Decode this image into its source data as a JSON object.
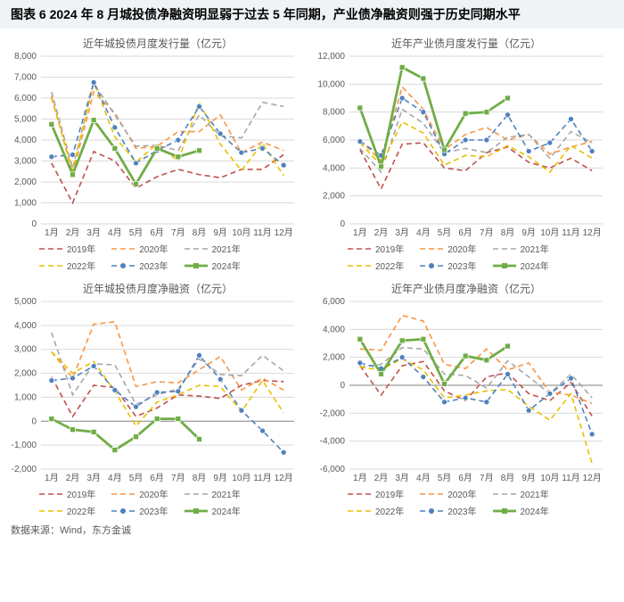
{
  "header": "图表 6   2024 年 8 月城投债净融资明显弱于过去 5 年同期，产业债净融资则强于历史同期水平",
  "footer": "数据来源：Wind，东方金诚",
  "categories": [
    "1月",
    "2月",
    "3月",
    "4月",
    "5月",
    "6月",
    "7月",
    "8月",
    "9月",
    "10月",
    "11月",
    "12月"
  ],
  "series_meta": [
    {
      "key": "y2019",
      "name": "2019年",
      "color": "#c0504d",
      "dash": "6 4",
      "marker": "none",
      "width": 1.6
    },
    {
      "key": "y2020",
      "name": "2020年",
      "color": "#f79646",
      "dash": "6 4",
      "marker": "none",
      "width": 1.6
    },
    {
      "key": "y2021",
      "name": "2021年",
      "color": "#a6a6a6",
      "dash": "6 4",
      "marker": "none",
      "width": 1.6
    },
    {
      "key": "y2022",
      "name": "2022年",
      "color": "#e8c000",
      "dash": "6 4",
      "marker": "none",
      "width": 1.6
    },
    {
      "key": "y2023",
      "name": "2023年",
      "color": "#4f81bd",
      "dash": "6 4",
      "marker": "circle",
      "width": 1.6
    },
    {
      "key": "y2024",
      "name": "2024年",
      "color": "#70ad47",
      "dash": "none",
      "marker": "square",
      "width": 2.8
    }
  ],
  "chart_style": {
    "plot_bg": "#ffffff",
    "grid_color": "#d9d9d9",
    "axis_font": 10,
    "title_font": 12,
    "title_color": "#595959",
    "marker_radius": 3
  },
  "panels": [
    {
      "id": "tl",
      "title": "近年城投债月度发行量（亿元）",
      "ymin": 0,
      "ymax": 8000,
      "ystep": 1000,
      "data": {
        "y2019": [
          2900,
          1000,
          3450,
          3000,
          1700,
          2250,
          2600,
          2350,
          2200,
          2600,
          2600,
          3300
        ],
        "y2020": [
          6100,
          2400,
          6300,
          5300,
          3600,
          3700,
          4400,
          4400,
          5200,
          3400,
          3900,
          3500
        ],
        "y2021": [
          6300,
          2650,
          6700,
          5200,
          3700,
          3750,
          3500,
          5200,
          4200,
          4100,
          5800,
          5600
        ],
        "y2022": [
          6000,
          2550,
          6750,
          4150,
          2950,
          3800,
          3000,
          5800,
          3800,
          2550,
          3850,
          2300
        ],
        "y2023": [
          3200,
          3300,
          6750,
          4600,
          2900,
          3500,
          4000,
          5600,
          4300,
          3400,
          3600,
          2800
        ],
        "y2024": [
          4750,
          2350,
          4950,
          3600,
          1900,
          3600,
          3200,
          3500,
          null,
          null,
          null,
          null
        ]
      }
    },
    {
      "id": "tr",
      "title": "近年产业债月度发行量（亿元）",
      "ymin": 0,
      "ymax": 12000,
      "ystep": 2000,
      "data": {
        "y2019": [
          5300,
          2500,
          5700,
          5800,
          4000,
          3800,
          5100,
          5500,
          4400,
          4000,
          4700,
          3800
        ],
        "y2020": [
          6000,
          4500,
          9800,
          8200,
          5300,
          6400,
          6900,
          6000,
          6400,
          5000,
          5500,
          5900
        ],
        "y2021": [
          5400,
          3700,
          8200,
          7200,
          5100,
          5400,
          5100,
          6200,
          6400,
          4700,
          6600,
          5800
        ],
        "y2022": [
          5800,
          4200,
          7300,
          6500,
          4200,
          4900,
          4800,
          5600,
          4800,
          3700,
          5600,
          4700
        ],
        "y2023": [
          5900,
          4900,
          9000,
          8000,
          5000,
          6000,
          6000,
          7800,
          5200,
          5800,
          7500,
          5200
        ],
        "y2024": [
          8300,
          4100,
          11200,
          10400,
          5300,
          7900,
          8000,
          9000,
          null,
          null,
          null,
          null
        ]
      }
    },
    {
      "id": "bl",
      "title": "近年城投债月度净融资（亿元）",
      "ymin": -2000,
      "ymax": 5000,
      "ystep": 1000,
      "data": {
        "y2019": [
          1850,
          200,
          1500,
          1400,
          200,
          550,
          1100,
          1050,
          950,
          1500,
          1700,
          1650
        ],
        "y2020": [
          2900,
          1800,
          4050,
          4150,
          1450,
          1650,
          1600,
          2150,
          2700,
          1300,
          1800,
          1300
        ],
        "y2021": [
          3700,
          1100,
          2400,
          2350,
          700,
          1100,
          1350,
          2600,
          1950,
          1900,
          2750,
          2100
        ],
        "y2022": [
          2900,
          2000,
          2500,
          1250,
          -200,
          800,
          1100,
          1500,
          1450,
          400,
          1700,
          350
        ],
        "y2023": [
          1700,
          1800,
          2300,
          1300,
          600,
          1200,
          1250,
          2750,
          1750,
          450,
          -400,
          -1300
        ],
        "y2024": [
          100,
          -350,
          -450,
          -1200,
          -650,
          100,
          100,
          -750,
          null,
          null,
          null,
          null
        ]
      }
    },
    {
      "id": "br",
      "title": "近年产业债月度净融资（亿元）",
      "ymin": -6000,
      "ymax": 6000,
      "ystep": 2000,
      "data": {
        "y2019": [
          1400,
          -700,
          1400,
          1700,
          -400,
          -1100,
          600,
          900,
          -600,
          -1100,
          200,
          -2200
        ],
        "y2020": [
          2600,
          2500,
          5000,
          4600,
          1500,
          1200,
          2600,
          1100,
          1600,
          -500,
          -700,
          -1300
        ],
        "y2021": [
          1300,
          1500,
          2700,
          2600,
          800,
          700,
          -200,
          1750,
          600,
          -600,
          800,
          -900
        ],
        "y2022": [
          1300,
          1100,
          1900,
          1100,
          -900,
          -700,
          -400,
          -300,
          -1500,
          -2500,
          -600,
          -5600
        ],
        "y2023": [
          1600,
          1200,
          2000,
          600,
          -1200,
          -900,
          -1200,
          800,
          -1800,
          -600,
          500,
          -3500
        ],
        "y2024": [
          3300,
          800,
          3200,
          3300,
          100,
          2100,
          1800,
          2800,
          null,
          null,
          null,
          null
        ]
      }
    }
  ]
}
